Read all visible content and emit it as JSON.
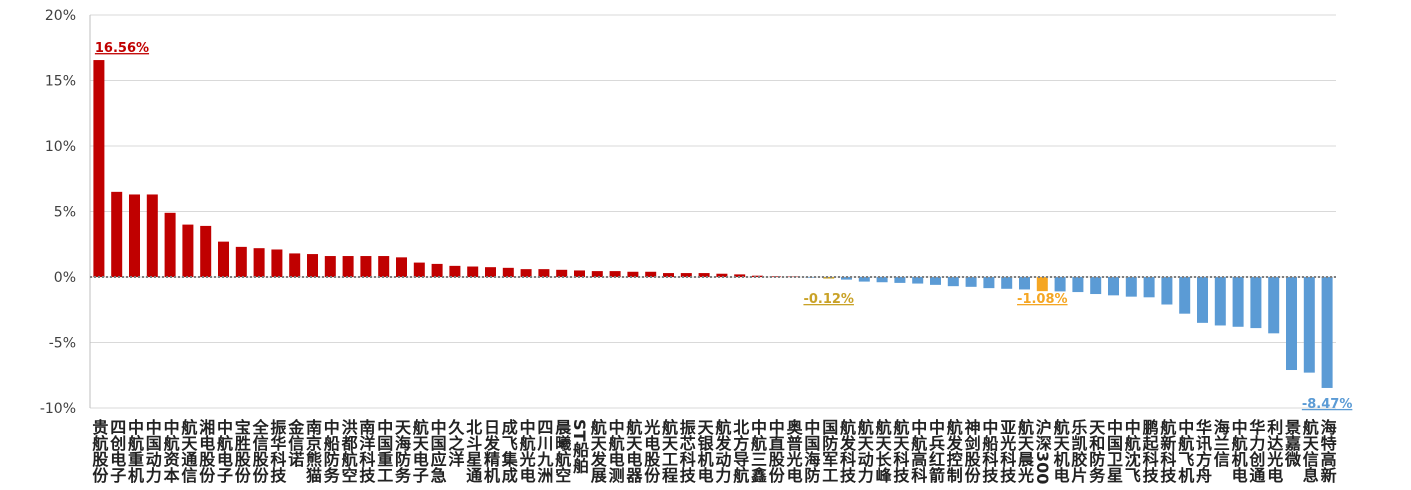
{
  "chart_data": {
    "type": "bar",
    "categories": [
      "贵航股份",
      "四创电子",
      "中航重机",
      "中国动力",
      "中航资本",
      "航天通信",
      "湘电股份",
      "中航电子",
      "宝胜股份",
      "全信股份",
      "振华科技",
      "金信诺",
      "南京熊猫",
      "中船防务",
      "洪都航空",
      "南洋科技",
      "中国重工",
      "天海防务",
      "航天电子",
      "中国应急",
      "久之洋",
      "北斗星通",
      "日发精机",
      "成飞集成",
      "中航光电",
      "四川九洲",
      "晨曦航空",
      "ST船舶",
      "航天发展",
      "中航电测",
      "航天电器",
      "光电股份",
      "航天工程",
      "振芯科技",
      "天银机电",
      "航发动力",
      "北方导航",
      "中航三鑫",
      "中直股份",
      "奥普光电",
      "中国海防",
      "国防军工",
      "航发科技",
      "航天动力",
      "航天长峰",
      "航天科技",
      "中航高科",
      "中兵红箭",
      "航发控制",
      "神剑股份",
      "中船科技",
      "亚光科技",
      "航天晨光",
      "沪深300",
      "航天机电",
      "乐凯胶片",
      "天和防务",
      "中国卫星",
      "中航沈飞",
      "鹏起科技",
      "航新科技",
      "中航飞机",
      "华讯方舟",
      "海兰信",
      "中航机电",
      "华力创通",
      "利达光电",
      "景嘉微",
      "航天信息",
      "海特高新"
    ],
    "values": [
      16.56,
      6.5,
      6.3,
      6.3,
      4.9,
      4.0,
      3.9,
      2.7,
      2.3,
      2.2,
      2.1,
      1.8,
      1.75,
      1.6,
      1.6,
      1.6,
      1.6,
      1.5,
      1.1,
      1.0,
      0.85,
      0.8,
      0.75,
      0.7,
      0.6,
      0.6,
      0.55,
      0.5,
      0.45,
      0.45,
      0.4,
      0.4,
      0.3,
      0.3,
      0.3,
      0.25,
      0.2,
      0.1,
      0.05,
      0.03,
      -0.05,
      -0.12,
      -0.2,
      -0.35,
      -0.4,
      -0.45,
      -0.5,
      -0.6,
      -0.7,
      -0.75,
      -0.85,
      -0.9,
      -0.95,
      -1.08,
      -1.1,
      -1.15,
      -1.3,
      -1.4,
      -1.5,
      -1.55,
      -2.1,
      -2.8,
      -3.5,
      -3.7,
      -3.8,
      -3.9,
      -4.3,
      -7.1,
      -7.3,
      -8.47
    ],
    "value_labels": [
      "16.56%",
      null,
      null,
      null,
      null,
      null,
      null,
      null,
      null,
      null,
      null,
      null,
      null,
      null,
      null,
      null,
      null,
      null,
      null,
      null,
      null,
      null,
      null,
      null,
      null,
      null,
      null,
      null,
      null,
      null,
      null,
      null,
      null,
      null,
      null,
      null,
      null,
      null,
      null,
      null,
      null,
      "-0.12%",
      null,
      null,
      null,
      null,
      null,
      null,
      null,
      null,
      null,
      null,
      null,
      "-1.08%",
      null,
      null,
      null,
      null,
      null,
      null,
      null,
      null,
      null,
      null,
      null,
      null,
      null,
      null,
      null,
      "-8.47%"
    ],
    "colors": [
      "#c00000",
      "#c00000",
      "#c00000",
      "#c00000",
      "#c00000",
      "#c00000",
      "#c00000",
      "#c00000",
      "#c00000",
      "#c00000",
      "#c00000",
      "#c00000",
      "#c00000",
      "#c00000",
      "#c00000",
      "#c00000",
      "#c00000",
      "#c00000",
      "#c00000",
      "#c00000",
      "#c00000",
      "#c00000",
      "#c00000",
      "#c00000",
      "#c00000",
      "#c00000",
      "#c00000",
      "#c00000",
      "#c00000",
      "#c00000",
      "#c00000",
      "#c00000",
      "#c00000",
      "#c00000",
      "#c00000",
      "#c00000",
      "#c00000",
      "#c00000",
      "#c00000",
      "#c00000",
      "#5b9bd5",
      "#c9a227",
      "#5b9bd5",
      "#5b9bd5",
      "#5b9bd5",
      "#5b9bd5",
      "#5b9bd5",
      "#5b9bd5",
      "#5b9bd5",
      "#5b9bd5",
      "#5b9bd5",
      "#5b9bd5",
      "#5b9bd5",
      "#f5a623",
      "#5b9bd5",
      "#5b9bd5",
      "#5b9bd5",
      "#5b9bd5",
      "#5b9bd5",
      "#5b9bd5",
      "#5b9bd5",
      "#5b9bd5",
      "#5b9bd5",
      "#5b9bd5",
      "#5b9bd5",
      "#5b9bd5",
      "#5b9bd5",
      "#5b9bd5",
      "#5b9bd5",
      "#5b9bd5"
    ],
    "ylim": [
      -10,
      20
    ],
    "yticks": [
      {
        "value": -10,
        "label": "-10%"
      },
      {
        "value": -5,
        "label": "-5%"
      },
      {
        "value": 0,
        "label": "0%"
      },
      {
        "value": 5,
        "label": "5%"
      },
      {
        "value": 10,
        "label": "10%"
      },
      {
        "value": 15,
        "label": "15%"
      },
      {
        "value": 20,
        "label": "20%"
      }
    ],
    "grid": true
  }
}
